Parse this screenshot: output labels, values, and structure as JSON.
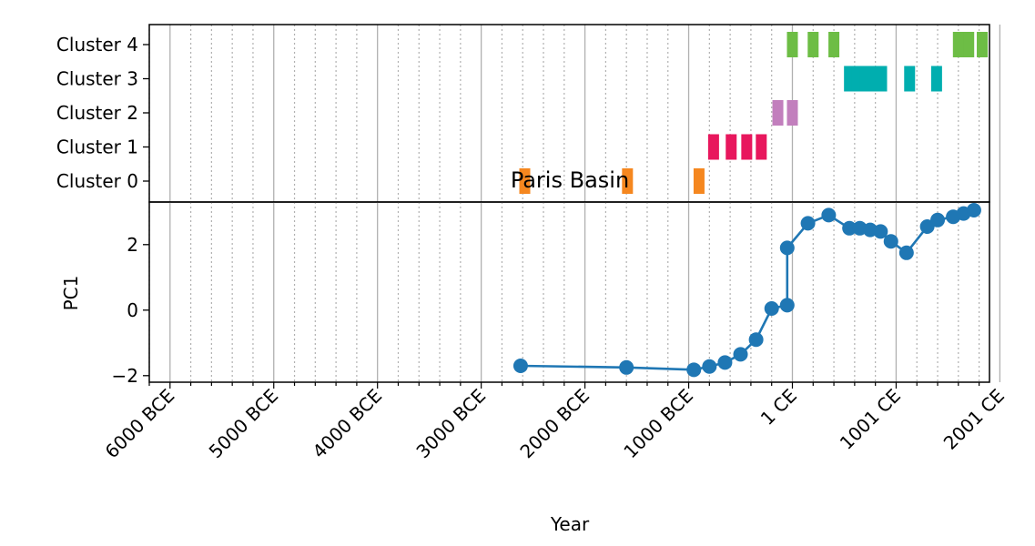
{
  "chart_data": [
    {
      "type": "timeline",
      "title": "Paris Basin",
      "categories": [
        "Cluster 0",
        "Cluster 1",
        "Cluster 2",
        "Cluster 3",
        "Cluster 4"
      ],
      "colors": {
        "Cluster 0": "#f5871f",
        "Cluster 1": "#e8175d",
        "Cluster 2": "#c27fbd",
        "Cluster 3": "#00aeaf",
        "Cluster 4": "#6dbd45"
      },
      "marks": [
        {
          "cluster": "Cluster 0",
          "year": -2580
        },
        {
          "cluster": "Cluster 0",
          "year": -1590
        },
        {
          "cluster": "Cluster 0",
          "year": -900
        },
        {
          "cluster": "Cluster 1",
          "year": -760
        },
        {
          "cluster": "Cluster 1",
          "year": -590
        },
        {
          "cluster": "Cluster 1",
          "year": -440
        },
        {
          "cluster": "Cluster 1",
          "year": -300
        },
        {
          "cluster": "Cluster 2",
          "year": -140
        },
        {
          "cluster": "Cluster 2",
          "year": 0
        },
        {
          "cluster": "Cluster 3",
          "year": 550
        },
        {
          "cluster": "Cluster 3",
          "year": 620
        },
        {
          "cluster": "Cluster 3",
          "year": 700
        },
        {
          "cluster": "Cluster 3",
          "year": 780
        },
        {
          "cluster": "Cluster 3",
          "year": 860
        },
        {
          "cluster": "Cluster 3",
          "year": 1130
        },
        {
          "cluster": "Cluster 3",
          "year": 1390
        },
        {
          "cluster": "Cluster 4",
          "year": 0
        },
        {
          "cluster": "Cluster 4",
          "year": 200
        },
        {
          "cluster": "Cluster 4",
          "year": 400
        },
        {
          "cluster": "Cluster 4",
          "year": 1600
        },
        {
          "cluster": "Cluster 4",
          "year": 1700
        },
        {
          "cluster": "Cluster 4",
          "year": 1830
        }
      ],
      "grid": true
    },
    {
      "type": "line",
      "ylabel": "PC1",
      "xlabel": "Year",
      "ylim": [
        -2.2,
        3.3
      ],
      "yticks": [
        -2,
        0,
        2
      ],
      "color": "#1f77b4",
      "series": [
        {
          "x": [
            -2620,
            -1600,
            -950,
            -800,
            -650,
            -500,
            -350,
            -200,
            -50,
            -50,
            150,
            350,
            550,
            650,
            750,
            850,
            950,
            1100,
            1300,
            1400,
            1550,
            1650,
            1750
          ],
          "values": [
            -1.7,
            -1.75,
            -1.82,
            -1.72,
            -1.6,
            -1.35,
            -0.9,
            0.05,
            0.15,
            1.9,
            2.65,
            2.9,
            2.5,
            2.5,
            2.45,
            2.4,
            2.1,
            1.75,
            2.55,
            2.75,
            2.85,
            2.95,
            3.05
          ]
        }
      ]
    }
  ],
  "x_axis": {
    "label": "Year",
    "xlim": [
      -6200,
      1900
    ],
    "major_ticks": [
      {
        "value": -6000,
        "label": "6000 BCE"
      },
      {
        "value": -5000,
        "label": "5000 BCE"
      },
      {
        "value": -4000,
        "label": "4000 BCE"
      },
      {
        "value": -3000,
        "label": "3000 BCE"
      },
      {
        "value": -2000,
        "label": "2000 BCE"
      },
      {
        "value": -1000,
        "label": "1000 BCE"
      },
      {
        "value": 0,
        "label": "1 CE"
      },
      {
        "value": 1000,
        "label": "1001 CE"
      },
      {
        "value": 2000,
        "label": "2001 CE"
      }
    ],
    "minor_step": 200
  }
}
